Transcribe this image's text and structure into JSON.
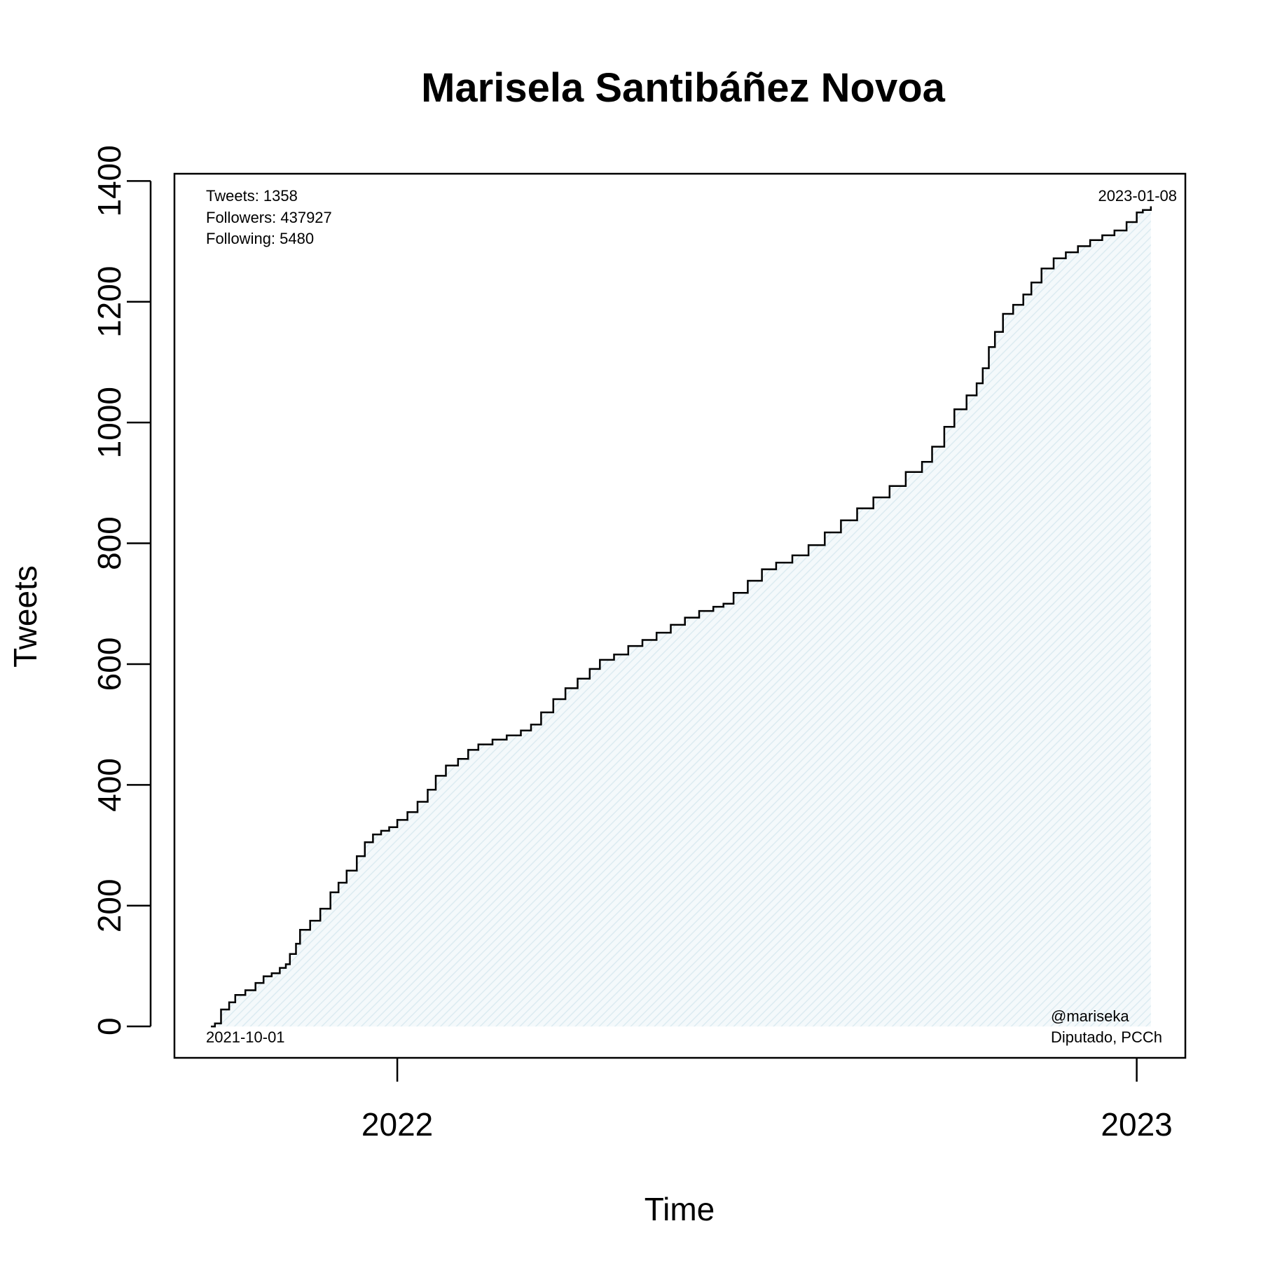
{
  "chart_data": {
    "type": "area",
    "title": "Marisela Santibáñez Novoa",
    "xlabel": "Time",
    "ylabel": "Tweets",
    "xlim": [
      "2021-09-13",
      "2023-01-25"
    ],
    "ylim": [
      -52,
      1412
    ],
    "yticks": [
      0,
      200,
      400,
      600,
      800,
      1000,
      1200,
      1400
    ],
    "xticks": [
      {
        "label": "2022",
        "date": "2022-01-01"
      },
      {
        "label": "2023",
        "date": "2023-01-01"
      }
    ],
    "grid": false,
    "colors": {
      "line": "#000000",
      "fill": "#e8f3f6"
    },
    "stats": {
      "tweets": "Tweets: 1358",
      "followers": "Followers: 437927",
      "following": "Following: 5480"
    },
    "start_label": "2021-10-01",
    "end_label": "2023-01-08",
    "handle": "@mariseka",
    "role": "Diputado, PCCh",
    "series": [
      {
        "points": [
          [
            "2021-10-01",
            0
          ],
          [
            "2021-10-03",
            5
          ],
          [
            "2021-10-06",
            28
          ],
          [
            "2021-10-10",
            40
          ],
          [
            "2021-10-13",
            52
          ],
          [
            "2021-10-18",
            60
          ],
          [
            "2021-10-23",
            72
          ],
          [
            "2021-10-27",
            83
          ],
          [
            "2021-10-31",
            88
          ],
          [
            "2021-11-04",
            97
          ],
          [
            "2021-11-07",
            103
          ],
          [
            "2021-11-09",
            120
          ],
          [
            "2021-11-12",
            137
          ],
          [
            "2021-11-14",
            160
          ],
          [
            "2021-11-19",
            175
          ],
          [
            "2021-11-24",
            195
          ],
          [
            "2021-11-29",
            222
          ],
          [
            "2021-12-03",
            238
          ],
          [
            "2021-12-07",
            258
          ],
          [
            "2021-12-12",
            282
          ],
          [
            "2021-12-16",
            305
          ],
          [
            "2021-12-20",
            318
          ],
          [
            "2021-12-24",
            324
          ],
          [
            "2021-12-28",
            330
          ],
          [
            "2022-01-01",
            342
          ],
          [
            "2022-01-06",
            355
          ],
          [
            "2022-01-11",
            372
          ],
          [
            "2022-01-16",
            392
          ],
          [
            "2022-01-20",
            415
          ],
          [
            "2022-01-25",
            432
          ],
          [
            "2022-01-31",
            443
          ],
          [
            "2022-02-05",
            458
          ],
          [
            "2022-02-10",
            467
          ],
          [
            "2022-02-17",
            475
          ],
          [
            "2022-02-24",
            482
          ],
          [
            "2022-03-03",
            490
          ],
          [
            "2022-03-08",
            500
          ],
          [
            "2022-03-13",
            520
          ],
          [
            "2022-03-19",
            542
          ],
          [
            "2022-03-25",
            560
          ],
          [
            "2022-03-31",
            576
          ],
          [
            "2022-04-06",
            592
          ],
          [
            "2022-04-11",
            607
          ],
          [
            "2022-04-18",
            616
          ],
          [
            "2022-04-25",
            630
          ],
          [
            "2022-05-02",
            640
          ],
          [
            "2022-05-09",
            652
          ],
          [
            "2022-05-16",
            665
          ],
          [
            "2022-05-23",
            677
          ],
          [
            "2022-05-30",
            688
          ],
          [
            "2022-06-06",
            695
          ],
          [
            "2022-06-11",
            700
          ],
          [
            "2022-06-16",
            718
          ],
          [
            "2022-06-23",
            738
          ],
          [
            "2022-06-30",
            757
          ],
          [
            "2022-07-07",
            768
          ],
          [
            "2022-07-15",
            780
          ],
          [
            "2022-07-23",
            797
          ],
          [
            "2022-07-31",
            818
          ],
          [
            "2022-08-08",
            838
          ],
          [
            "2022-08-16",
            858
          ],
          [
            "2022-08-24",
            876
          ],
          [
            "2022-09-01",
            895
          ],
          [
            "2022-09-09",
            918
          ],
          [
            "2022-09-17",
            935
          ],
          [
            "2022-09-22",
            960
          ],
          [
            "2022-09-28",
            993
          ],
          [
            "2022-10-03",
            1022
          ],
          [
            "2022-10-09",
            1045
          ],
          [
            "2022-10-14",
            1065
          ],
          [
            "2022-10-17",
            1090
          ],
          [
            "2022-10-20",
            1125
          ],
          [
            "2022-10-23",
            1150
          ],
          [
            "2022-10-27",
            1180
          ],
          [
            "2022-11-01",
            1195
          ],
          [
            "2022-11-06",
            1212
          ],
          [
            "2022-11-10",
            1232
          ],
          [
            "2022-11-15",
            1255
          ],
          [
            "2022-11-21",
            1272
          ],
          [
            "2022-11-27",
            1282
          ],
          [
            "2022-12-03",
            1292
          ],
          [
            "2022-12-09",
            1302
          ],
          [
            "2022-12-15",
            1310
          ],
          [
            "2022-12-21",
            1318
          ],
          [
            "2022-12-27",
            1332
          ],
          [
            "2023-01-01",
            1348
          ],
          [
            "2023-01-04",
            1352
          ],
          [
            "2023-01-08",
            1358
          ]
        ]
      }
    ]
  }
}
